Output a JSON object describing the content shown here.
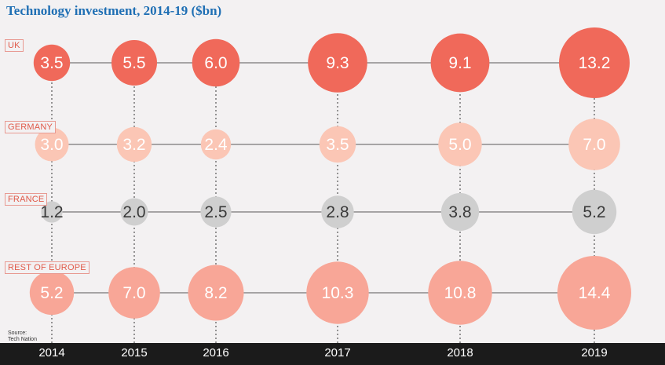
{
  "chart_data": {
    "type": "bubble-grid",
    "title": "Technology investment, 2014-19 ($bn)",
    "x": [
      "2014",
      "2015",
      "2016",
      "2017",
      "2018",
      "2019"
    ],
    "series": [
      {
        "name": "UK",
        "values": [
          3.5,
          5.5,
          6.0,
          9.3,
          9.1,
          13.2
        ],
        "labels": [
          "3.5",
          "5.5",
          "6.0",
          "9.3",
          "9.1",
          "13.2"
        ],
        "color": "#f0695a"
      },
      {
        "name": "GERMANY",
        "values": [
          3.0,
          3.2,
          2.4,
          3.5,
          5.0,
          7.0
        ],
        "labels": [
          "3.0",
          "3.2",
          "2.4",
          "3.5",
          "5.0",
          "7.0"
        ],
        "color": "#fbc6b5"
      },
      {
        "name": "FRANCE",
        "values": [
          1.2,
          2.0,
          2.5,
          2.8,
          3.8,
          5.2
        ],
        "labels": [
          "1.2",
          "2.0",
          "2.5",
          "2.8",
          "3.8",
          "5.2"
        ],
        "color": "#cfcfcf"
      },
      {
        "name": "REST OF EUROPE",
        "values": [
          5.2,
          7.0,
          8.2,
          10.3,
          10.8,
          14.4
        ],
        "labels": [
          "5.2",
          "7.0",
          "8.2",
          "10.3",
          "10.8",
          "14.4"
        ],
        "color": "#f8a697"
      }
    ],
    "source": [
      "Source:",
      "Tech Nation"
    ]
  }
}
